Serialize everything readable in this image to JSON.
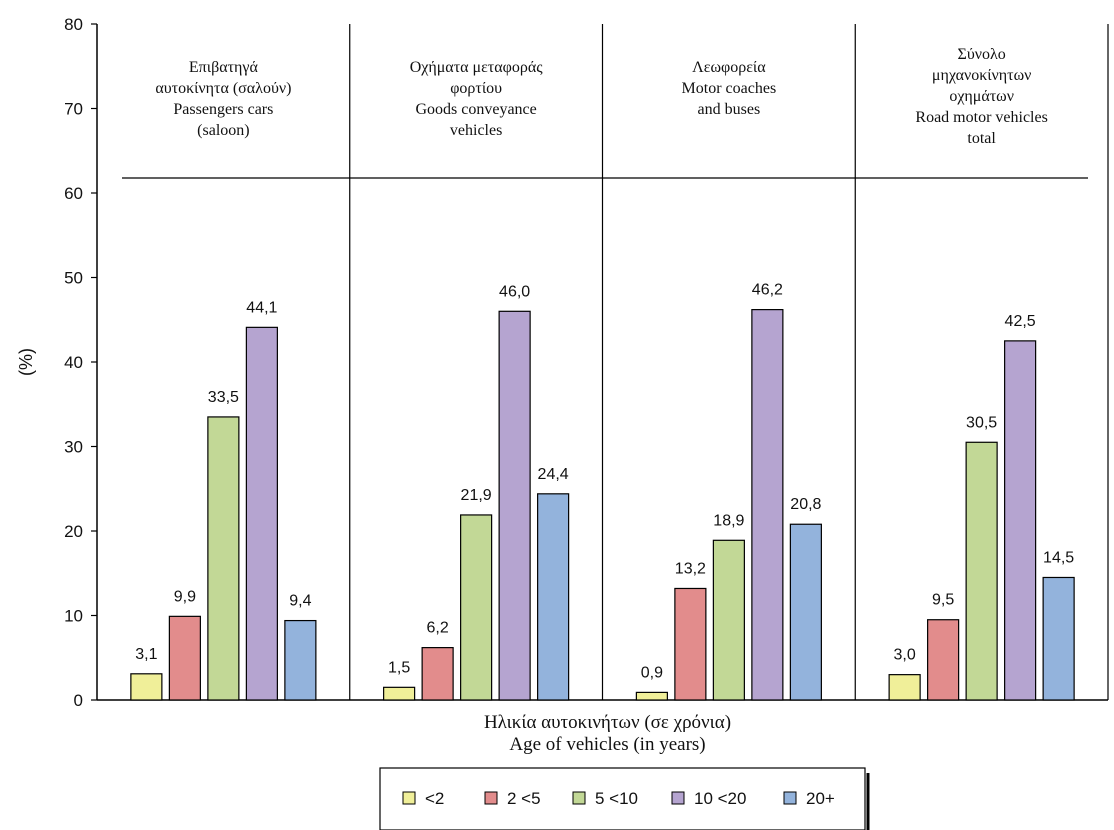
{
  "chart_data": {
    "type": "bar",
    "ylabel": "(%)",
    "ylim": [
      0,
      80
    ],
    "yticks": [
      0,
      10,
      20,
      30,
      40,
      50,
      60,
      70,
      80
    ],
    "xlabel": [
      "Ηλικία αυτοκινήτων (σε χρόνια)",
      "Age of vehicles (in years)"
    ],
    "series": [
      {
        "name": "<2",
        "color": "#f0ef99"
      },
      {
        "name": "2 <5",
        "color": "#e28c8c"
      },
      {
        "name": "5 <10",
        "color": "#c2d896"
      },
      {
        "name": "10 <20",
        "color": "#b5a4d0"
      },
      {
        "name": "20+",
        "color": "#93b3dc"
      }
    ],
    "groups": [
      {
        "title": [
          "Επιβατηγά",
          "αυτοκίνητα  (σαλούν)",
          "Passengers cars",
          "(saloon)"
        ],
        "values": [
          3.1,
          9.9,
          33.5,
          44.1,
          9.4
        ],
        "labels": [
          "3,1",
          "9,9",
          "33,5",
          "44,1",
          "9,4"
        ]
      },
      {
        "title": [
          "Οχήματα μεταφοράς",
          "φορτίου",
          "Goods conveyance",
          "vehicles"
        ],
        "values": [
          1.5,
          6.2,
          21.9,
          46.0,
          24.4
        ],
        "labels": [
          "1,5",
          "6,2",
          "21,9",
          "46,0",
          "24,4"
        ]
      },
      {
        "title": [
          "Λεωφορεία",
          "Motor coaches",
          "and buses"
        ],
        "values": [
          0.9,
          13.2,
          18.9,
          46.2,
          20.8
        ],
        "labels": [
          "0,9",
          "13,2",
          "18,9",
          "46,2",
          "20,8"
        ]
      },
      {
        "title": [
          "Σύνολο",
          "μηχανοκίνητων",
          "οχημάτων",
          "Road motor  vehicles",
          "total"
        ],
        "values": [
          3.0,
          9.5,
          30.5,
          42.5,
          14.5
        ],
        "labels": [
          "3,0",
          "9,5",
          "30,5",
          "42,5",
          "14,5"
        ]
      }
    ],
    "legend_position": "bottom"
  }
}
